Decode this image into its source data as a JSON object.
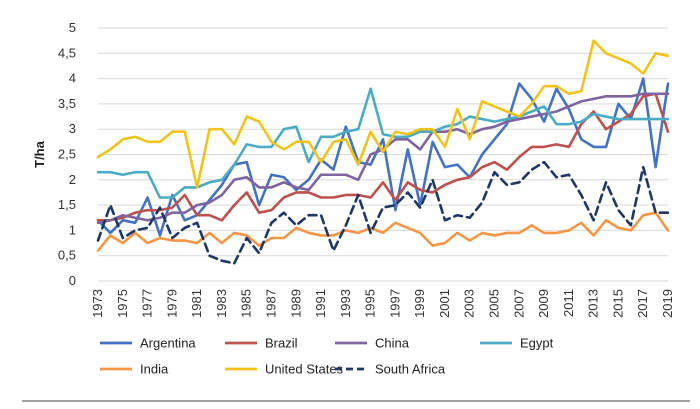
{
  "chart_data": {
    "type": "line",
    "ylabel": "T/ha",
    "xlabel": "",
    "title": "",
    "ylim": [
      0,
      5
    ],
    "yticks": [
      0,
      0.5,
      1,
      1.5,
      2,
      2.5,
      3,
      3.5,
      4,
      4.5,
      5
    ],
    "ytick_labels": [
      "0",
      "0,5",
      "1",
      "1,5",
      "2",
      "2,5",
      "3",
      "3,5",
      "4",
      "4,5",
      "5"
    ],
    "x": [
      1973,
      1974,
      1975,
      1976,
      1977,
      1978,
      1979,
      1980,
      1981,
      1982,
      1983,
      1984,
      1985,
      1986,
      1987,
      1988,
      1989,
      1990,
      1991,
      1992,
      1993,
      1994,
      1995,
      1996,
      1997,
      1998,
      1999,
      2000,
      2001,
      2002,
      2003,
      2004,
      2005,
      2006,
      2007,
      2008,
      2009,
      2010,
      2011,
      2012,
      2013,
      2014,
      2015,
      2016,
      2017,
      2018,
      2019
    ],
    "xticks": [
      1973,
      1975,
      1977,
      1979,
      1981,
      1983,
      1985,
      1987,
      1989,
      1991,
      1993,
      1995,
      1997,
      1999,
      2001,
      2003,
      2005,
      2007,
      2009,
      2011,
      2013,
      2015,
      2017,
      2019
    ],
    "grid": "horizontal",
    "legend_position": "bottom",
    "series": [
      {
        "name": "Argentina",
        "color": "#4472C4",
        "dash": "solid",
        "values": [
          1.2,
          0.95,
          1.2,
          1.15,
          1.65,
          0.9,
          1.7,
          1.2,
          1.3,
          1.6,
          1.9,
          2.3,
          2.35,
          1.5,
          2.1,
          2.05,
          1.8,
          2.0,
          2.4,
          2.2,
          3.05,
          2.35,
          2.3,
          2.8,
          1.4,
          2.6,
          1.5,
          2.75,
          2.25,
          2.3,
          2.05,
          2.5,
          2.8,
          3.1,
          3.9,
          3.6,
          3.15,
          3.8,
          3.4,
          2.8,
          2.65,
          2.65,
          3.5,
          3.2,
          4.0,
          2.25,
          3.9
        ]
      },
      {
        "name": "Brazil",
        "color": "#C0504D",
        "dash": "solid",
        "values": [
          1.2,
          1.2,
          1.25,
          1.35,
          1.4,
          1.4,
          1.45,
          1.7,
          1.3,
          1.3,
          1.2,
          1.5,
          1.75,
          1.35,
          1.4,
          1.65,
          1.75,
          1.75,
          1.65,
          1.65,
          1.7,
          1.7,
          1.65,
          1.95,
          1.6,
          1.95,
          1.8,
          1.75,
          1.9,
          2.0,
          2.05,
          2.25,
          2.35,
          2.2,
          2.45,
          2.65,
          2.65,
          2.7,
          2.65,
          3.1,
          3.35,
          3.0,
          3.15,
          3.3,
          3.65,
          3.7,
          2.95
        ]
      },
      {
        "name": "China",
        "color": "#8064A2",
        "dash": "solid",
        "values": [
          1.15,
          1.2,
          1.3,
          1.25,
          1.2,
          1.25,
          1.35,
          1.35,
          1.5,
          1.55,
          1.7,
          2.0,
          2.05,
          1.85,
          1.85,
          1.95,
          1.85,
          1.8,
          2.1,
          2.1,
          2.1,
          2.0,
          2.5,
          2.6,
          2.8,
          2.8,
          2.6,
          2.95,
          2.95,
          3.0,
          2.9,
          3.0,
          3.05,
          3.15,
          3.2,
          3.25,
          3.3,
          3.35,
          3.45,
          3.55,
          3.6,
          3.65,
          3.65,
          3.65,
          3.7,
          3.7,
          3.7
        ]
      },
      {
        "name": "Egypt",
        "color": "#4BACC6",
        "dash": "solid",
        "values": [
          2.15,
          2.15,
          2.1,
          2.15,
          2.15,
          1.65,
          1.65,
          1.85,
          1.85,
          1.95,
          2.0,
          2.3,
          2.7,
          2.65,
          2.65,
          3.0,
          3.05,
          2.35,
          2.85,
          2.85,
          2.95,
          3.0,
          3.8,
          2.9,
          2.85,
          2.85,
          2.95,
          2.95,
          3.05,
          3.1,
          3.25,
          3.2,
          3.15,
          3.2,
          3.25,
          3.35,
          3.45,
          3.1,
          3.1,
          3.15,
          3.3,
          3.25,
          3.2,
          3.2,
          3.2,
          3.2,
          3.2
        ]
      },
      {
        "name": "India",
        "color": "#F79646",
        "dash": "solid",
        "values": [
          0.6,
          0.9,
          0.75,
          0.95,
          0.75,
          0.85,
          0.8,
          0.8,
          0.75,
          0.95,
          0.75,
          0.95,
          0.9,
          0.7,
          0.85,
          0.85,
          1.05,
          0.95,
          0.9,
          0.9,
          1.0,
          0.95,
          1.05,
          0.95,
          1.15,
          1.05,
          0.95,
          0.7,
          0.75,
          0.95,
          0.8,
          0.95,
          0.9,
          0.95,
          0.95,
          1.1,
          0.95,
          0.95,
          1.0,
          1.15,
          0.9,
          1.2,
          1.05,
          1.0,
          1.3,
          1.35,
          1.0
        ]
      },
      {
        "name": "United States",
        "color": "#F2C31B",
        "dash": "solid",
        "values": [
          2.45,
          2.6,
          2.8,
          2.85,
          2.75,
          2.75,
          2.95,
          2.95,
          1.85,
          3.0,
          3.0,
          2.7,
          3.25,
          3.15,
          2.75,
          2.6,
          2.75,
          2.75,
          2.35,
          2.75,
          2.8,
          2.3,
          2.95,
          2.55,
          2.95,
          2.9,
          3.0,
          3.0,
          2.65,
          3.4,
          2.8,
          3.55,
          3.45,
          3.35,
          3.25,
          3.5,
          3.85,
          3.85,
          3.7,
          3.75,
          4.75,
          4.5,
          4.4,
          4.3,
          4.1,
          4.5,
          4.45
        ]
      },
      {
        "name": "South Africa",
        "color": "#1F3864",
        "dash": "dashed",
        "values": [
          0.8,
          1.5,
          0.85,
          1.0,
          1.05,
          1.45,
          0.85,
          1.05,
          1.15,
          0.5,
          0.4,
          0.35,
          0.85,
          0.55,
          1.15,
          1.35,
          1.1,
          1.3,
          1.3,
          0.6,
          1.1,
          1.7,
          0.95,
          1.45,
          1.5,
          1.75,
          1.45,
          2.0,
          1.2,
          1.3,
          1.25,
          1.55,
          2.15,
          1.9,
          1.95,
          2.2,
          2.35,
          2.05,
          2.1,
          1.7,
          1.2,
          1.95,
          1.4,
          1.1,
          2.25,
          1.35,
          1.35
        ]
      }
    ]
  }
}
